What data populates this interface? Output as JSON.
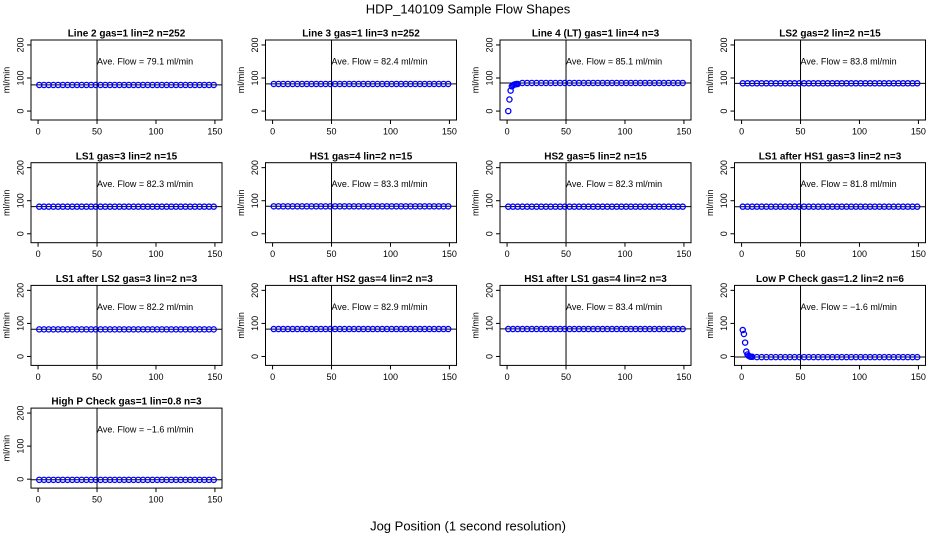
{
  "chart_data": {
    "type": "scatter",
    "title": "HDP_140109  Sample Flow Shapes",
    "xlabel": "Jog Position (1 second resolution)",
    "ylabel": "ml/min",
    "xlim": [
      -6,
      156
    ],
    "ylim": [
      -27,
      215
    ],
    "xticks": [
      0,
      50,
      100,
      150
    ],
    "yticks": [
      0,
      100,
      200
    ],
    "vline": 50,
    "color": "#0000ff",
    "x": [
      1,
      5,
      9,
      13,
      17,
      21,
      25,
      29,
      33,
      37,
      41,
      45,
      49,
      53,
      57,
      61,
      65,
      69,
      73,
      77,
      81,
      85,
      89,
      93,
      97,
      101,
      105,
      109,
      113,
      117,
      121,
      125,
      129,
      133,
      137,
      141,
      145,
      149
    ],
    "panels": [
      {
        "title": "Line 2 gas=1 lin=2 n=252",
        "annotation": "Ave. Flow = 79.1  ml/min",
        "mean": 79.1,
        "values": [
          79,
          79,
          79,
          79,
          79,
          79,
          79,
          79,
          79,
          79,
          79,
          79,
          79,
          79,
          79,
          79,
          79,
          79,
          79,
          79,
          79,
          79,
          79,
          79,
          79,
          79,
          79,
          79,
          79,
          79,
          79,
          79,
          79,
          79,
          79,
          79,
          79,
          79
        ]
      },
      {
        "title": "Line 3 gas=1 lin=3 n=252",
        "annotation": "Ave. Flow = 82.4  ml/min",
        "mean": 82.4,
        "values": [
          82,
          82,
          82,
          82,
          82,
          82,
          82,
          82,
          82,
          82,
          82,
          82,
          82,
          82,
          82,
          82,
          82,
          82,
          82,
          82,
          82,
          82,
          82,
          82,
          82,
          82,
          82,
          82,
          82,
          82,
          82,
          82,
          82,
          82,
          82,
          82,
          82,
          82
        ]
      },
      {
        "title": "Line 4 (LT) gas=1 lin=4 n=3",
        "annotation": "Ave. Flow = 85.1  ml/min",
        "mean": 85.1,
        "x": [
          1,
          2,
          3,
          4,
          5,
          6,
          7,
          8,
          9,
          13,
          17,
          21,
          25,
          29,
          33,
          37,
          41,
          45,
          49,
          53,
          57,
          61,
          65,
          69,
          73,
          77,
          81,
          85,
          89,
          93,
          97,
          101,
          105,
          109,
          113,
          117,
          121,
          125,
          129,
          133,
          137,
          141,
          145,
          149
        ],
        "values": [
          0,
          35,
          62,
          75,
          78,
          80,
          81,
          82,
          82,
          85,
          85,
          85,
          85,
          85,
          85,
          85,
          85,
          85,
          85,
          85,
          85,
          85,
          85,
          85,
          85,
          85,
          85,
          85,
          85,
          85,
          85,
          85,
          85,
          85,
          85,
          85,
          85,
          85,
          85,
          85,
          85,
          85,
          85,
          85
        ]
      },
      {
        "title": "LS2 gas=2 lin=2 n=15",
        "annotation": "Ave. Flow = 83.8  ml/min",
        "mean": 83.8,
        "values": [
          84,
          84,
          84,
          84,
          84,
          84,
          84,
          84,
          84,
          84,
          84,
          84,
          84,
          84,
          84,
          84,
          84,
          84,
          84,
          84,
          84,
          84,
          84,
          84,
          84,
          84,
          84,
          84,
          84,
          84,
          84,
          84,
          84,
          84,
          84,
          84,
          84,
          84
        ]
      },
      {
        "title": "LS1 gas=3 lin=2 n=15",
        "annotation": "Ave. Flow = 82.3  ml/min",
        "mean": 82.3,
        "values": [
          82,
          82,
          82,
          82,
          82,
          82,
          82,
          82,
          82,
          82,
          82,
          82,
          82,
          82,
          82,
          82,
          82,
          82,
          82,
          82,
          82,
          82,
          82,
          82,
          82,
          82,
          82,
          82,
          82,
          82,
          82,
          82,
          82,
          82,
          82,
          82,
          82,
          82
        ]
      },
      {
        "title": "HS1 gas=4 lin=2 n=15",
        "annotation": "Ave. Flow = 83.3  ml/min",
        "mean": 83.3,
        "values": [
          83,
          83,
          83,
          83,
          83,
          83,
          83,
          83,
          83,
          83,
          83,
          83,
          83,
          83,
          83,
          83,
          83,
          83,
          83,
          83,
          83,
          83,
          83,
          83,
          83,
          83,
          83,
          83,
          83,
          83,
          83,
          83,
          83,
          83,
          83,
          83,
          83,
          83
        ]
      },
      {
        "title": "HS2 gas=5 lin=2 n=15",
        "annotation": "Ave. Flow = 82.3  ml/min",
        "mean": 82.3,
        "values": [
          82,
          82,
          82,
          82,
          82,
          82,
          82,
          82,
          82,
          82,
          82,
          82,
          82,
          82,
          82,
          82,
          82,
          82,
          82,
          82,
          82,
          82,
          82,
          82,
          82,
          82,
          82,
          82,
          82,
          82,
          82,
          82,
          82,
          82,
          82,
          82,
          82,
          82
        ]
      },
      {
        "title": "LS1 after HS1 gas=3 lin=2 n=3",
        "annotation": "Ave. Flow = 81.8  ml/min",
        "mean": 81.8,
        "values": [
          82,
          82,
          82,
          82,
          82,
          82,
          82,
          82,
          82,
          82,
          82,
          82,
          82,
          82,
          82,
          82,
          82,
          82,
          82,
          82,
          82,
          82,
          82,
          82,
          82,
          82,
          82,
          82,
          82,
          82,
          82,
          82,
          82,
          82,
          82,
          82,
          82,
          82
        ]
      },
      {
        "title": "LS1 after LS2 gas=3 lin=2 n=3",
        "annotation": "Ave. Flow = 82.2  ml/min",
        "mean": 82.2,
        "values": [
          82,
          82,
          82,
          82,
          82,
          82,
          82,
          82,
          82,
          82,
          82,
          82,
          82,
          82,
          82,
          82,
          82,
          82,
          82,
          82,
          82,
          82,
          82,
          82,
          82,
          82,
          82,
          82,
          82,
          82,
          82,
          82,
          82,
          82,
          82,
          82,
          82,
          82
        ]
      },
      {
        "title": "HS1 after HS2 gas=4 lin=2 n=3",
        "annotation": "Ave. Flow = 82.9  ml/min",
        "mean": 82.9,
        "values": [
          83,
          83,
          83,
          83,
          83,
          83,
          83,
          83,
          83,
          83,
          83,
          83,
          83,
          83,
          83,
          83,
          83,
          83,
          83,
          83,
          83,
          83,
          83,
          83,
          83,
          83,
          83,
          83,
          83,
          83,
          83,
          83,
          83,
          83,
          83,
          83,
          83,
          83
        ]
      },
      {
        "title": "HS1 after LS1 gas=4 lin=2 n=3",
        "annotation": "Ave. Flow = 83.4  ml/min",
        "mean": 83.4,
        "values": [
          83,
          83,
          83,
          83,
          83,
          83,
          83,
          83,
          83,
          83,
          83,
          83,
          83,
          83,
          83,
          83,
          83,
          83,
          83,
          83,
          83,
          83,
          83,
          83,
          83,
          83,
          83,
          83,
          83,
          83,
          83,
          83,
          83,
          83,
          83,
          83,
          83,
          83
        ]
      },
      {
        "title": "Low P Check gas=1.2 lin=2 n=6",
        "annotation": "Ave. Flow = −1.6  ml/min",
        "mean": -1.6,
        "x": [
          1,
          2,
          3,
          4,
          5,
          6,
          7,
          8,
          9,
          13,
          17,
          21,
          25,
          29,
          33,
          37,
          41,
          45,
          49,
          53,
          57,
          61,
          65,
          69,
          73,
          77,
          81,
          85,
          89,
          93,
          97,
          101,
          105,
          109,
          113,
          117,
          121,
          125,
          129,
          133,
          137,
          141,
          145,
          149
        ],
        "values": [
          80,
          68,
          42,
          15,
          6,
          2,
          0,
          -1,
          -1,
          -2,
          -2,
          -2,
          -2,
          -2,
          -2,
          -2,
          -2,
          -2,
          -2,
          -2,
          -2,
          -2,
          -2,
          -2,
          -2,
          -2,
          -2,
          -2,
          -2,
          -2,
          -2,
          -2,
          -2,
          -2,
          -2,
          -2,
          -2,
          -2,
          -2,
          -2,
          -2,
          -2,
          -2,
          -2
        ]
      },
      {
        "title": "High P Check gas=1 lin=0.8 n=3",
        "annotation": "Ave. Flow = −1.6  ml/min",
        "mean": -1.6,
        "values": [
          -2,
          -2,
          -2,
          -2,
          -2,
          -2,
          -2,
          -2,
          -2,
          -2,
          -2,
          -2,
          -2,
          -2,
          -2,
          -2,
          -2,
          -2,
          -2,
          -2,
          -2,
          -2,
          -2,
          -2,
          -2,
          -2,
          -2,
          -2,
          -2,
          -2,
          -2,
          -2,
          -2,
          -2,
          -2,
          -2,
          -2,
          -2
        ]
      }
    ]
  }
}
